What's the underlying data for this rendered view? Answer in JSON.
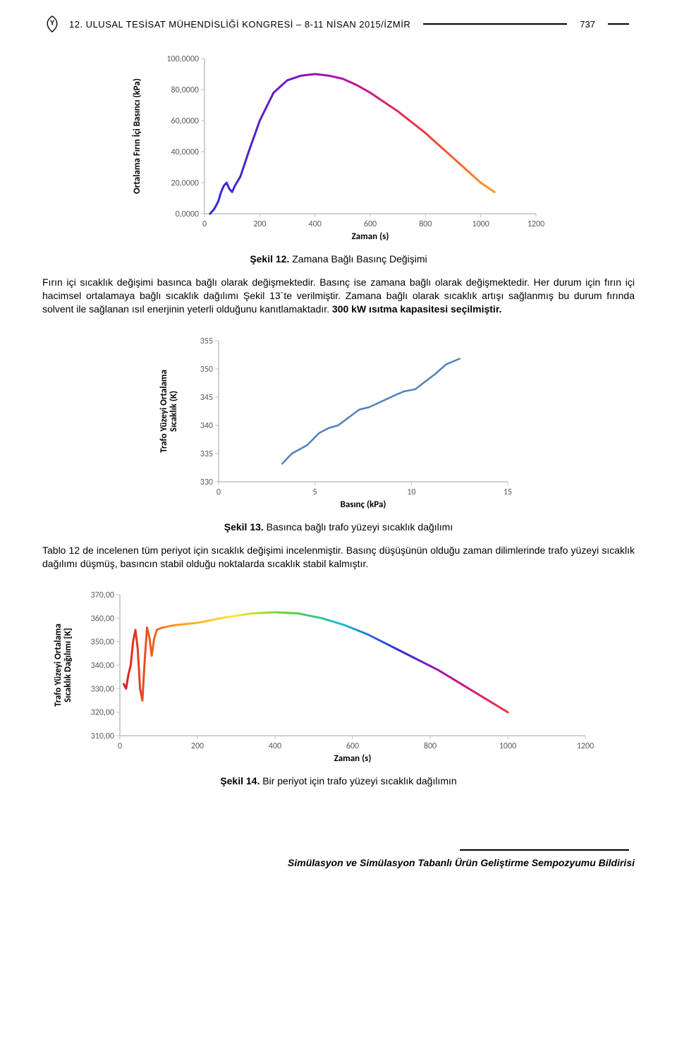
{
  "header": {
    "title": "12. ULUSAL TESİSAT MÜHENDİSLİĞİ KONGRESİ – 8-11 NİSAN 2015/İZMİR",
    "page_number": "737"
  },
  "chart1": {
    "type": "line",
    "ylabel": "Ortalama Fırın İçi Basıncı (kPa)",
    "xlabel": "Zaman (s)",
    "xlim": [
      0,
      1200
    ],
    "xtick_step": 200,
    "xticks": [
      "0",
      "200",
      "400",
      "600",
      "800",
      "1000",
      "1200"
    ],
    "ylim": [
      0,
      100
    ],
    "ytick_step": 20,
    "yticks": [
      "0,0000",
      "20,0000",
      "40,0000",
      "60,0000",
      "80,0000",
      "100,0000"
    ],
    "axis_color": "#bfbfbf",
    "tick_label_fontsize": 12,
    "axis_label_fontsize": 13,
    "axis_label_weight": "bold",
    "line_width": 3,
    "gradient_colors": [
      "#2e2dd6",
      "#6a18c8",
      "#bf1296",
      "#e83b3b",
      "#ff9b26"
    ],
    "data": [
      [
        20,
        0
      ],
      [
        35,
        3
      ],
      [
        50,
        8
      ],
      [
        60,
        14
      ],
      [
        70,
        18
      ],
      [
        80,
        20
      ],
      [
        90,
        16
      ],
      [
        100,
        14
      ],
      [
        110,
        18
      ],
      [
        130,
        24
      ],
      [
        160,
        40
      ],
      [
        200,
        60
      ],
      [
        250,
        78
      ],
      [
        300,
        86
      ],
      [
        350,
        89
      ],
      [
        400,
        90
      ],
      [
        450,
        89
      ],
      [
        500,
        87
      ],
      [
        550,
        83
      ],
      [
        600,
        78
      ],
      [
        650,
        72
      ],
      [
        700,
        66
      ],
      [
        750,
        59
      ],
      [
        800,
        52
      ],
      [
        850,
        44
      ],
      [
        900,
        36
      ],
      [
        950,
        28
      ],
      [
        1000,
        20
      ],
      [
        1050,
        14
      ]
    ],
    "caption_label": "Şekil 12.",
    "caption_text": " Zamana Bağlı Basınç Değişimi"
  },
  "para1": "Fırın içi sıcaklık değişimi basınca bağlı olarak değişmektedir. Basınç ise zamana bağlı olarak değişmektedir. Her durum için fırın içi hacimsel ortalamaya bağlı sıcaklık dağılımı Şekil 13`te verilmiştir. Zamana bağlı olarak sıcaklık artışı sağlanmış bu durum fırında solvent ile sağlanan ısıl enerjinin yeterli olduğunu kanıtlamaktadır. ",
  "para1_bold": "300 kW ısıtma kapasitesi seçilmiştir.",
  "chart2": {
    "type": "line",
    "ylabel": "Trafo Yüzeyi Ortalama\nSıcaklık (K)",
    "xlabel": "Basınç (kPa)",
    "xlim": [
      0,
      15
    ],
    "xtick_step": 5,
    "xticks": [
      "0",
      "5",
      "10",
      "15"
    ],
    "ylim": [
      330,
      355
    ],
    "ytick_step": 5,
    "yticks": [
      "330",
      "335",
      "340",
      "345",
      "350",
      "355"
    ],
    "axis_color": "#bfbfbf",
    "tick_label_fontsize": 12,
    "axis_label_fontsize": 13,
    "axis_label_weight": "bold",
    "line_color": "#4f81bd",
    "line_width": 2.5,
    "data": [
      [
        3.3,
        333.2
      ],
      [
        3.8,
        335.0
      ],
      [
        4.6,
        336.5
      ],
      [
        5.2,
        338.6
      ],
      [
        5.7,
        339.5
      ],
      [
        6.2,
        340.0
      ],
      [
        7.3,
        342.8
      ],
      [
        7.8,
        343.2
      ],
      [
        9.2,
        345.4
      ],
      [
        9.6,
        346.0
      ],
      [
        10.2,
        346.4
      ],
      [
        11.2,
        349.0
      ],
      [
        11.8,
        350.8
      ],
      [
        12.5,
        351.8
      ]
    ],
    "caption_label": "Şekil 13.",
    "caption_text": " Basınca bağlı trafo yüzeyi sıcaklık dağılımı"
  },
  "para2": "Tablo 12 de incelenen tüm periyot için sıcaklık değişimi incelenmiştir. Basınç düşüşünün olduğu zaman dilimlerinde trafo yüzeyi sıcaklık dağılımı düşmüş, basıncın stabil olduğu noktalarda sıcaklık stabil kalmıştır.",
  "chart3": {
    "type": "line",
    "ylabel": "Trafo Yüzeyi Ortalama\nSıcaklık Dağılımı [K]",
    "xlabel": "Zaman (s)",
    "xlim": [
      0,
      1200
    ],
    "xtick_step": 200,
    "xticks": [
      "0",
      "200",
      "400",
      "600",
      "800",
      "1000",
      "1200"
    ],
    "ylim": [
      310,
      370
    ],
    "ytick_step": 10,
    "yticks": [
      "310,00",
      "320,00",
      "330,00",
      "340,00",
      "350,00",
      "360,00",
      "370,00"
    ],
    "axis_color": "#bfbfbf",
    "tick_label_fontsize": 12,
    "axis_label_fontsize": 13,
    "axis_label_weight": "bold",
    "line_width": 3,
    "gradient_colors": [
      "#d81e1e",
      "#ff9b26",
      "#ffe63b",
      "#5ad237",
      "#1fb6d6",
      "#2e2dd6",
      "#bf1296",
      "#e83b3b"
    ],
    "data": [
      [
        10,
        332
      ],
      [
        16,
        330
      ],
      [
        22,
        336
      ],
      [
        28,
        340
      ],
      [
        34,
        350
      ],
      [
        40,
        355
      ],
      [
        46,
        347
      ],
      [
        52,
        330
      ],
      [
        58,
        325
      ],
      [
        64,
        342
      ],
      [
        70,
        356
      ],
      [
        76,
        352
      ],
      [
        82,
        344
      ],
      [
        88,
        351
      ],
      [
        95,
        355
      ],
      [
        110,
        356
      ],
      [
        140,
        357
      ],
      [
        200,
        358
      ],
      [
        260,
        360
      ],
      [
        340,
        362
      ],
      [
        400,
        362.5
      ],
      [
        460,
        362
      ],
      [
        520,
        360
      ],
      [
        580,
        357
      ],
      [
        640,
        353
      ],
      [
        700,
        348
      ],
      [
        760,
        343
      ],
      [
        820,
        338
      ],
      [
        880,
        332
      ],
      [
        940,
        326
      ],
      [
        1000,
        320
      ]
    ],
    "caption_label": "Şekil 14.",
    "caption_text": " Bir periyot için trafo yüzeyi sıcaklık dağılımın"
  },
  "footer": "Simülasyon ve Simülasyon Tabanlı Ürün Geliştirme Sempozyumu Bildirisi"
}
